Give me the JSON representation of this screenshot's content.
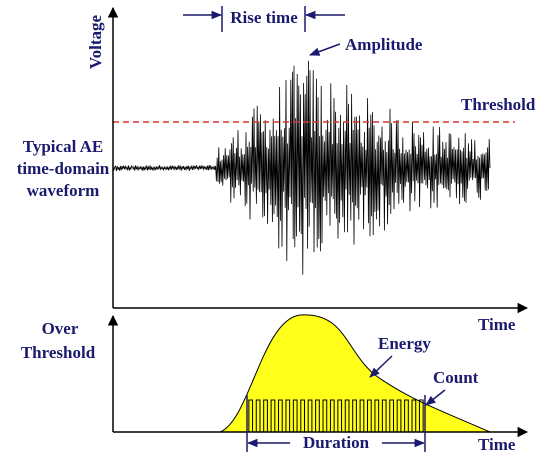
{
  "labels": {
    "voltage": "Voltage",
    "rise_time": "Rise time",
    "amplitude": "Amplitude",
    "threshold": "Threshold",
    "waveform": [
      "Typical AE",
      "time-domain",
      "waveform"
    ],
    "time_top": "Time",
    "over_threshold": [
      "Over",
      "Threshold"
    ],
    "energy": "Energy",
    "count": "Count",
    "duration": "Duration",
    "time_bottom": "Time"
  }
}
